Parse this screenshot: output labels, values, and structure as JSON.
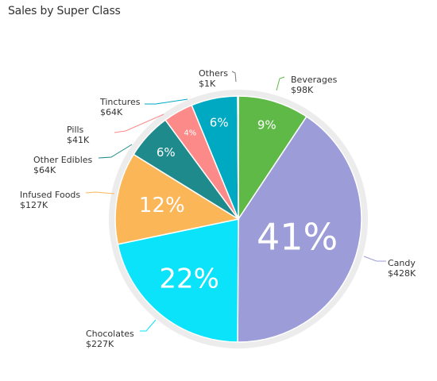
{
  "chart_data": {
    "type": "pie",
    "title": "Sales by Super Class",
    "slices": [
      {
        "name": "Beverages",
        "value_label": "$98K",
        "value": 98,
        "percent_label": "9%",
        "color": "#5fb946"
      },
      {
        "name": "Candy",
        "value_label": "$428K",
        "value": 428,
        "percent_label": "41%",
        "color": "#9b9cd8"
      },
      {
        "name": "Chocolates",
        "value_label": "$227K",
        "value": 227,
        "percent_label": "22%",
        "color": "#0ae3fa"
      },
      {
        "name": "Infused Foods",
        "value_label": "$127K",
        "value": 127,
        "percent_label": "12%",
        "color": "#fbb658"
      },
      {
        "name": "Other Edibles",
        "value_label": "$64K",
        "value": 64,
        "percent_label": "6%",
        "color": "#1f8a8c"
      },
      {
        "name": "Pills",
        "value_label": "$41K",
        "value": 41,
        "percent_label": "4%",
        "color": "#fc8a89"
      },
      {
        "name": "Tinctures",
        "value_label": "$64K",
        "value": 64,
        "percent_label": "6%",
        "color": "#00a9c2"
      },
      {
        "name": "Others",
        "value_label": "$1K",
        "value": 1,
        "percent_label": "",
        "color": "#7a7a7a"
      }
    ]
  }
}
